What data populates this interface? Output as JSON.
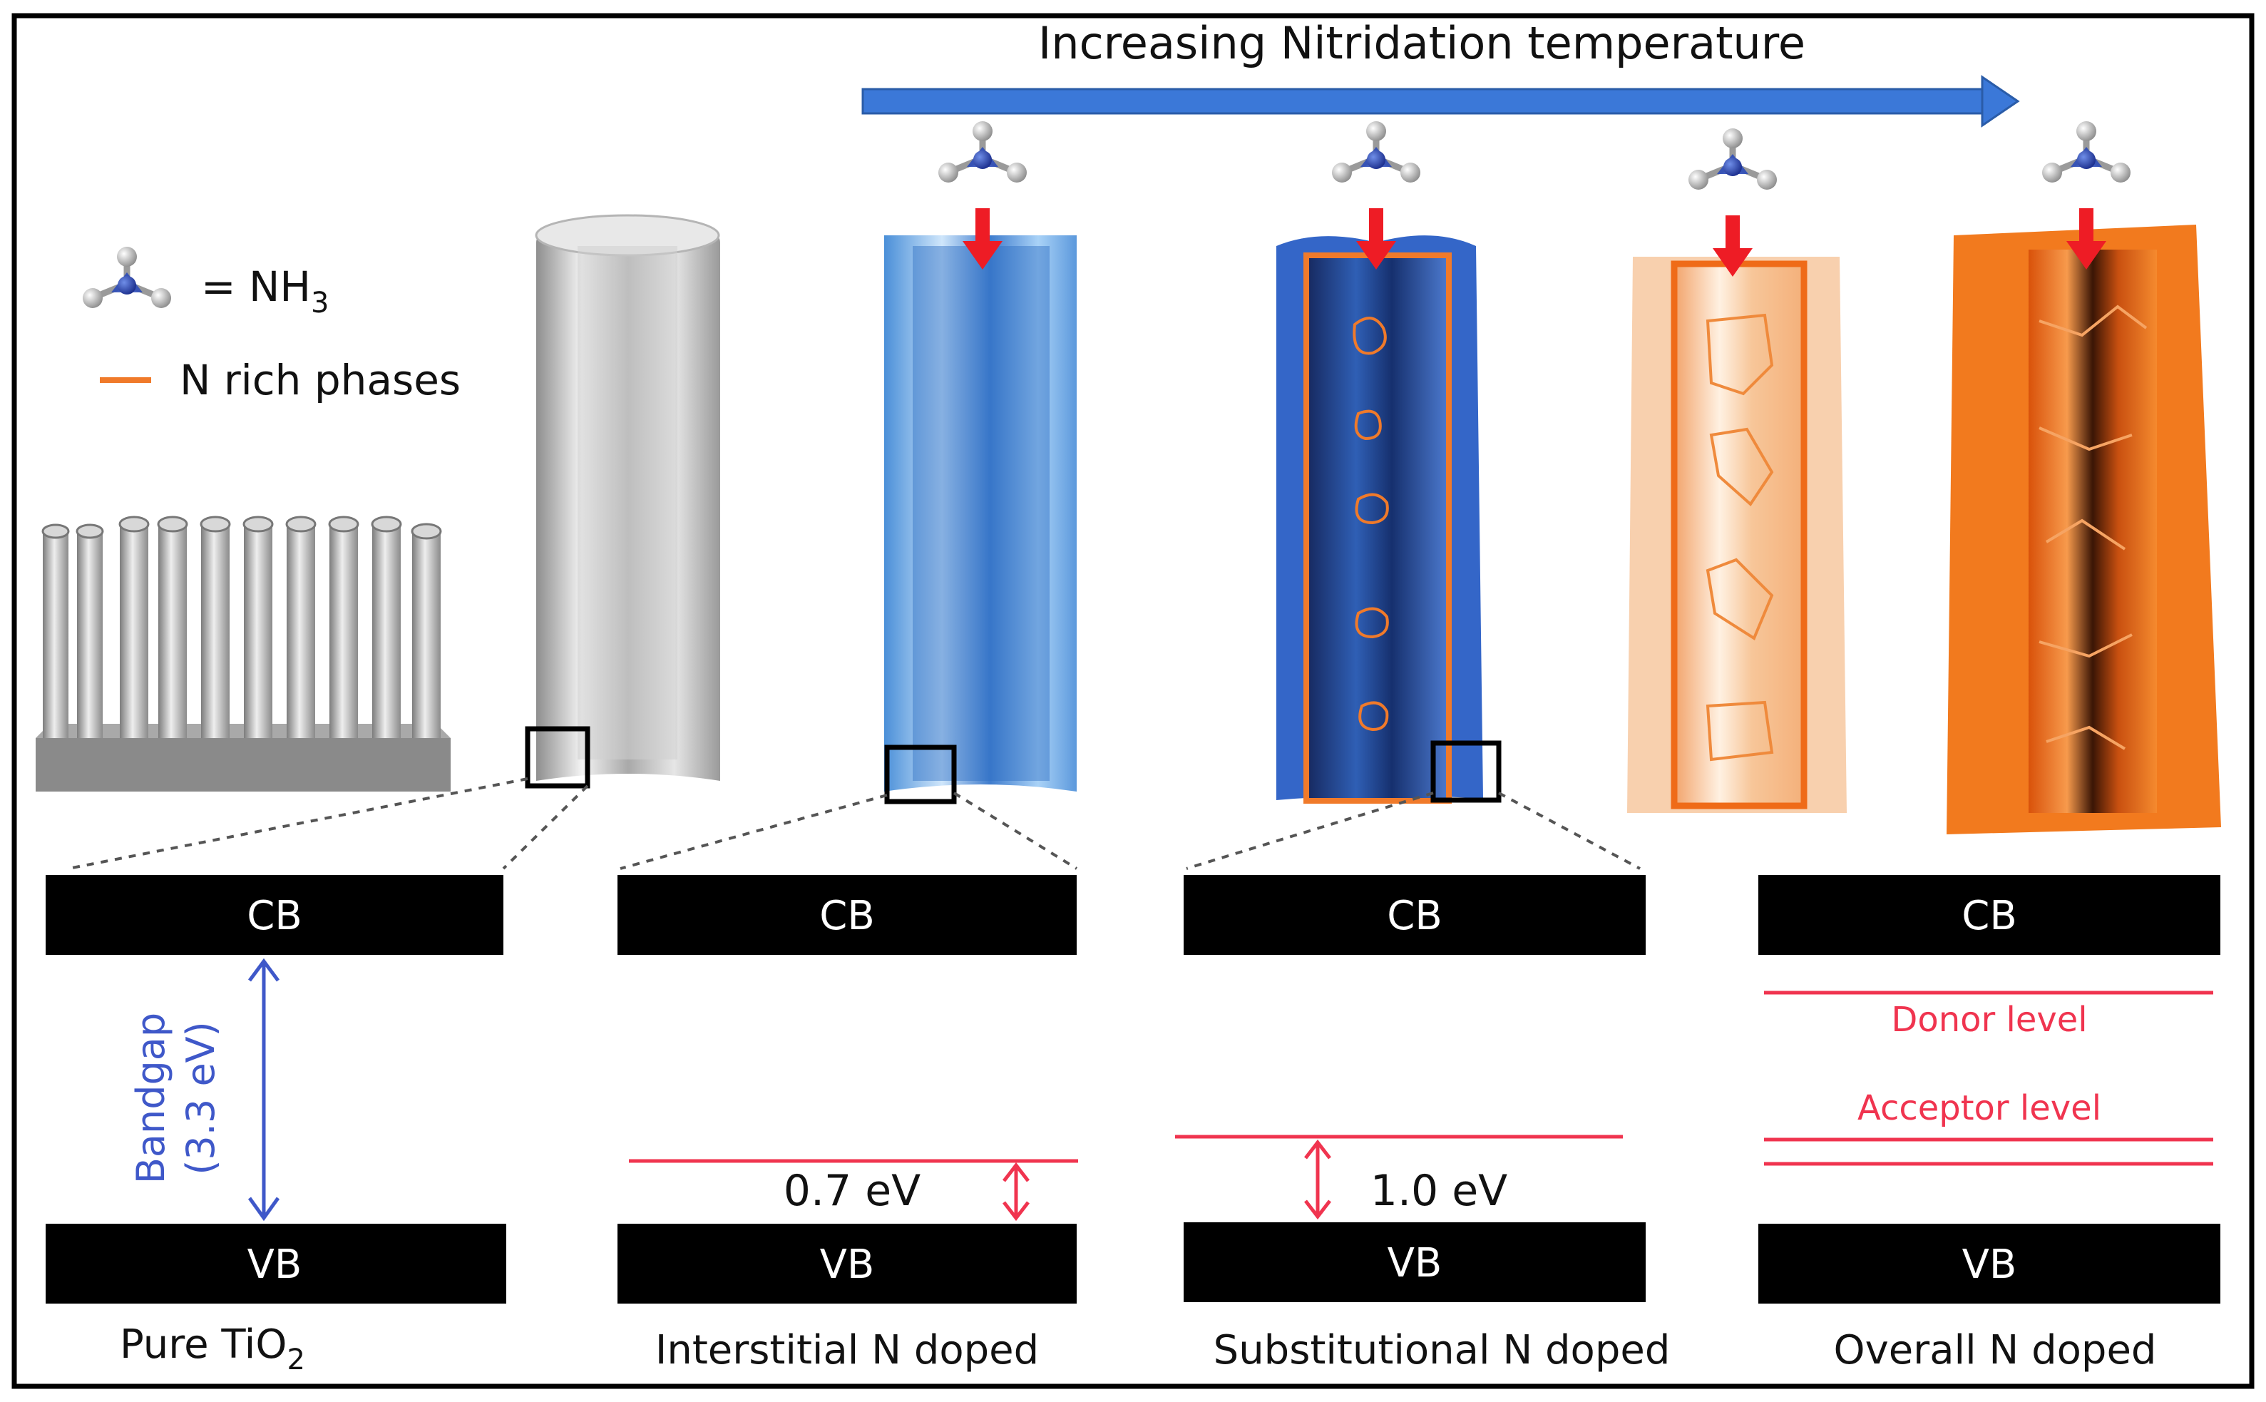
{
  "header": {
    "title": "Increasing Nitridation temperature"
  },
  "legend": {
    "nh3_equals": "= NH",
    "nh3_subscript": "3",
    "n_rich_label": "N rich phases",
    "n_rich_color": "#f07a2a"
  },
  "bands": {
    "cb_label": "CB",
    "vb_label": "VB",
    "bandgap_label": "Bandgap",
    "bandgap_value": "(3.3 eV)",
    "interstitial_gap": "0.7 eV",
    "substitutional_gap": "1.0 eV",
    "donor_label": "Donor level",
    "acceptor_label": "Acceptor level"
  },
  "captions": {
    "pure_prefix": "Pure TiO",
    "pure_subscript": "2",
    "interstitial": "Interstitial N doped",
    "substitutional": "Substitutional N doped",
    "overall": "Overall N doped"
  },
  "colors": {
    "arrow_blue": "#3b78d8",
    "level_red": "#f0344f",
    "band_black": "#000000",
    "bandgap_blue": "#3f58c9",
    "tube_grey": "#c9c9c9",
    "tube_lightblue": "#86bdf0",
    "tube_darkblue": "#1d3f8f",
    "tube_peach": "#f7c79b",
    "tube_orange": "#f27a1e"
  },
  "icons": [
    "nh3-molecule-icon",
    "red-down-arrow-icon",
    "double-headed-arrow-icon"
  ]
}
